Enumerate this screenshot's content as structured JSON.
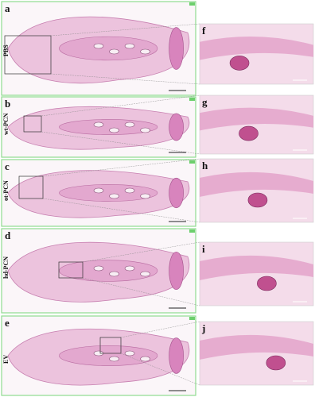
{
  "panels": [
    {
      "letter": "a",
      "label": "PBS"
    },
    {
      "letter": "b",
      "label": "wt-PCN"
    },
    {
      "letter": "c",
      "label": "ot-PCN"
    },
    {
      "letter": "d",
      "label": "hd-PCN"
    },
    {
      "letter": "e",
      "label": "EV"
    }
  ],
  "insets": [
    {
      "letter": "f"
    },
    {
      "letter": "g"
    },
    {
      "letter": "h"
    },
    {
      "letter": "i"
    },
    {
      "letter": "j"
    }
  ]
}
